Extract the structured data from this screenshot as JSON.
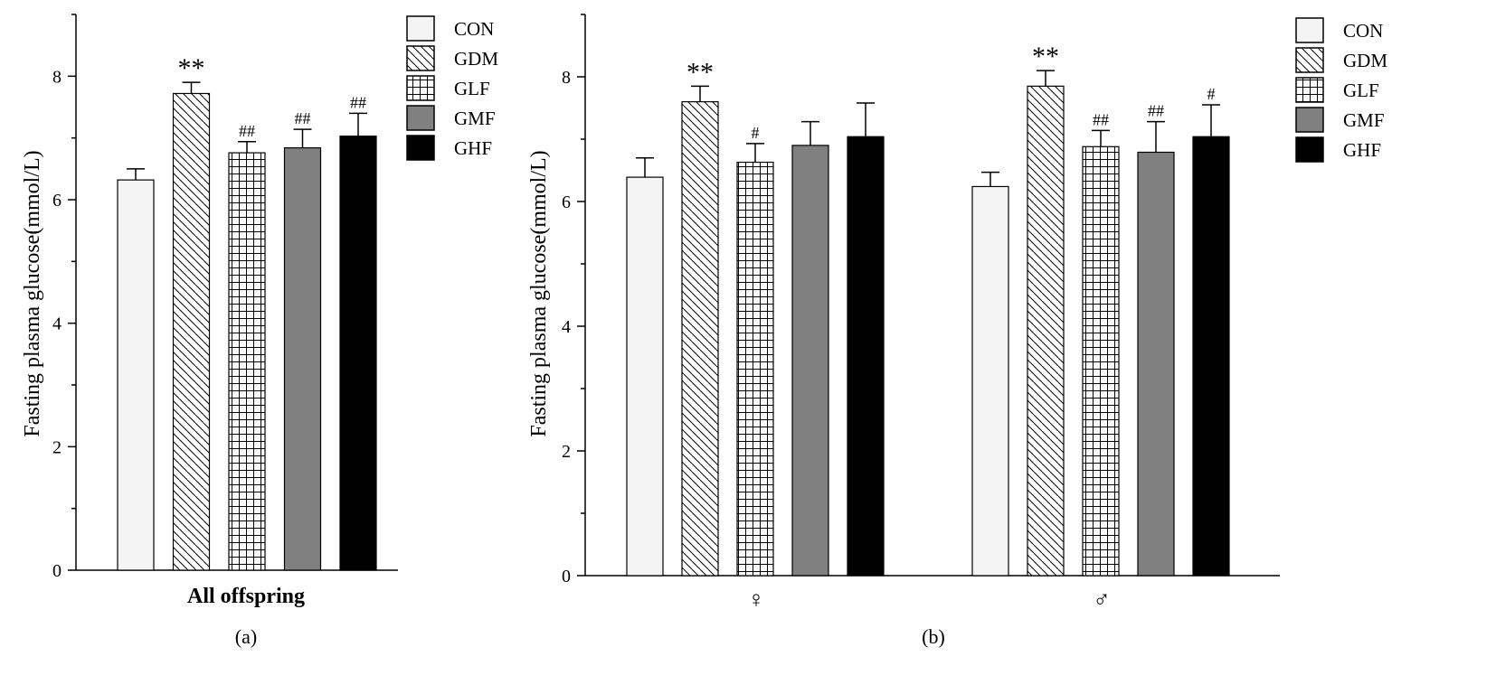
{
  "chart_data": [
    {
      "type": "bar",
      "panel_label": "(a)",
      "ylabel": "Fasting plasma glucose(mmol/L)",
      "xlabel": "",
      "ylim": [
        0,
        9
      ],
      "yticks": [
        0,
        2,
        4,
        6,
        8
      ],
      "grid": false,
      "legend_position": "top-right",
      "categories": [
        "All offspring"
      ],
      "series": [
        {
          "name": "CON",
          "values": [
            6.32
          ],
          "errors": [
            0.18
          ],
          "pattern": "light",
          "sig": [
            ""
          ]
        },
        {
          "name": "GDM",
          "values": [
            7.72
          ],
          "errors": [
            0.18
          ],
          "pattern": "diagonal",
          "sig": [
            "**"
          ]
        },
        {
          "name": "GLF",
          "values": [
            6.76
          ],
          "errors": [
            0.18
          ],
          "pattern": "grid",
          "sig": [
            "##"
          ]
        },
        {
          "name": "GMF",
          "values": [
            6.84
          ],
          "errors": [
            0.3
          ],
          "pattern": "gray",
          "sig": [
            "##"
          ]
        },
        {
          "name": "GHF",
          "values": [
            7.03
          ],
          "errors": [
            0.37
          ],
          "pattern": "black",
          "sig": [
            "##"
          ]
        }
      ]
    },
    {
      "type": "bar",
      "panel_label": "(b)",
      "ylabel": "Fasting plasma glucose(mmol/L)",
      "xlabel": "",
      "ylim": [
        0,
        9
      ],
      "yticks": [
        0,
        2,
        4,
        6,
        8
      ],
      "grid": false,
      "legend_position": "top-right",
      "categories": [
        "♀",
        "♂"
      ],
      "series": [
        {
          "name": "CON",
          "values": [
            6.39,
            6.24
          ],
          "errors": [
            0.31,
            0.23
          ],
          "pattern": "light",
          "sig": [
            "",
            ""
          ]
        },
        {
          "name": "GDM",
          "values": [
            7.6,
            7.85
          ],
          "errors": [
            0.25,
            0.25
          ],
          "pattern": "diagonal",
          "sig": [
            "**",
            "**"
          ]
        },
        {
          "name": "GLF",
          "values": [
            6.63,
            6.88
          ],
          "errors": [
            0.3,
            0.26
          ],
          "pattern": "grid",
          "sig": [
            "#",
            "##"
          ]
        },
        {
          "name": "GMF",
          "values": [
            6.9,
            6.79
          ],
          "errors": [
            0.38,
            0.49
          ],
          "pattern": "gray",
          "sig": [
            "",
            "##"
          ]
        },
        {
          "name": "GHF",
          "values": [
            7.04,
            7.04
          ],
          "errors": [
            0.54,
            0.51
          ],
          "pattern": "black",
          "sig": [
            "",
            "#"
          ]
        }
      ]
    }
  ]
}
